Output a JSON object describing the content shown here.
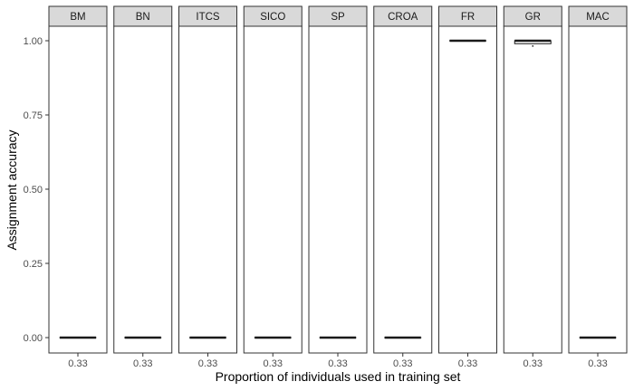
{
  "chart_data": {
    "type": "boxplot",
    "xlabel": "Proportion of individuals used in training set",
    "ylabel": "Assignment accuracy",
    "ylim": [
      0,
      1
    ],
    "y_ticks": [
      "0.00",
      "0.25",
      "0.50",
      "0.75",
      "1.00"
    ],
    "y_tick_values": [
      0,
      0.25,
      0.5,
      0.75,
      1.0
    ],
    "grid": false,
    "facets": [
      {
        "label": "BM",
        "x": "0.33",
        "box": {
          "min": 0,
          "q1": 0,
          "median": 0,
          "q3": 0,
          "max": 0
        },
        "outliers": []
      },
      {
        "label": "BN",
        "x": "0.33",
        "box": {
          "min": 0,
          "q1": 0,
          "median": 0,
          "q3": 0,
          "max": 0
        },
        "outliers": []
      },
      {
        "label": "ITCS",
        "x": "0.33",
        "box": {
          "min": 0,
          "q1": 0,
          "median": 0,
          "q3": 0,
          "max": 0
        },
        "outliers": []
      },
      {
        "label": "SICO",
        "x": "0.33",
        "box": {
          "min": 0,
          "q1": 0,
          "median": 0,
          "q3": 0,
          "max": 0
        },
        "outliers": []
      },
      {
        "label": "SP",
        "x": "0.33",
        "box": {
          "min": 0,
          "q1": 0,
          "median": 0,
          "q3": 0,
          "max": 0
        },
        "outliers": []
      },
      {
        "label": "CROA",
        "x": "0.33",
        "box": {
          "min": 0,
          "q1": 0,
          "median": 0,
          "q3": 0,
          "max": 0
        },
        "outliers": []
      },
      {
        "label": "FR",
        "x": "0.33",
        "box": {
          "min": 1,
          "q1": 1,
          "median": 1,
          "q3": 1,
          "max": 1
        },
        "outliers": []
      },
      {
        "label": "GR",
        "x": "0.33",
        "box": {
          "min": 0.99,
          "q1": 0.99,
          "median": 1,
          "q3": 1,
          "max": 1
        },
        "outliers": [
          0.982
        ]
      },
      {
        "label": "MAC",
        "x": "0.33",
        "box": {
          "min": 0,
          "q1": 0,
          "median": 0,
          "q3": 0,
          "max": 0
        },
        "outliers": []
      }
    ]
  },
  "colors": {
    "strip_fill": "#d9d9d9",
    "panel_border": "#333333",
    "box_line": "#1a1a1a"
  }
}
